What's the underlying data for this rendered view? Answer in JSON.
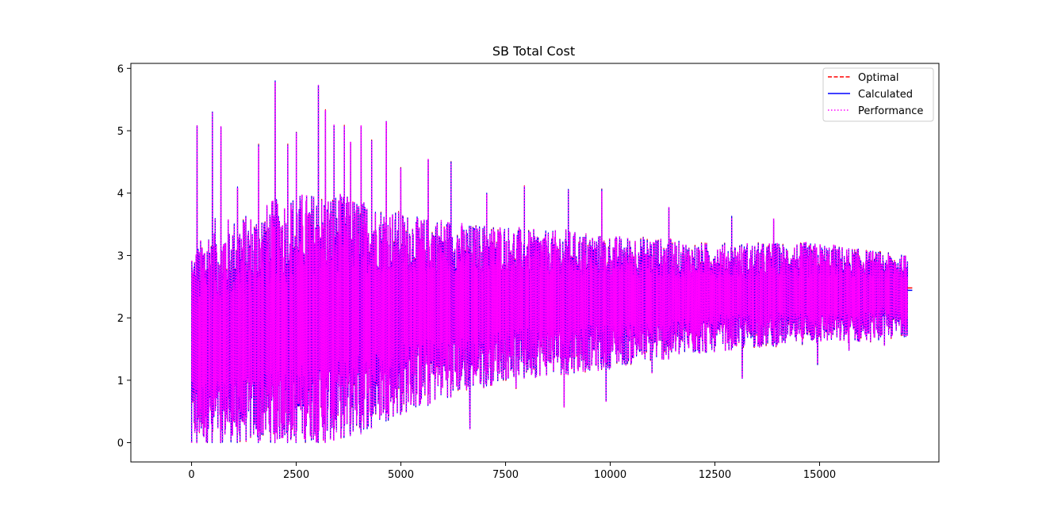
{
  "chart_data": {
    "type": "line",
    "title": "SB Total Cost",
    "xlabel": "",
    "ylabel": "",
    "xlim": [
      -1450,
      17850
    ],
    "ylim": [
      -0.31,
      6.08
    ],
    "x_ticks": [
      0,
      2500,
      5000,
      7500,
      10000,
      12500,
      15000
    ],
    "x_tick_labels": [
      "0",
      "2500",
      "5000",
      "7500",
      "10000",
      "12500",
      "15000"
    ],
    "y_ticks": [
      0,
      1,
      2,
      3,
      4,
      5,
      6
    ],
    "y_tick_labels": [
      "0",
      "1",
      "2",
      "3",
      "4",
      "5",
      "6"
    ],
    "grid": false,
    "legend_position": "top-right",
    "n_points": 17150,
    "series": [
      {
        "name": "Optimal",
        "color": "#ff0000",
        "style": "dashed"
      },
      {
        "name": "Calculated",
        "color": "#0000ff",
        "style": "solid"
      },
      {
        "name": "Performance",
        "color": "#ff00ff",
        "style": "dotted"
      }
    ],
    "envelope": {
      "x": [
        0,
        250,
        500,
        750,
        1000,
        1500,
        2000,
        2500,
        3000,
        3500,
        4000,
        4500,
        5000,
        5500,
        6000,
        6500,
        7000,
        7500,
        8000,
        9000,
        10000,
        11000,
        12000,
        13000,
        14000,
        15000,
        16000,
        17100
      ],
      "upper": [
        3.0,
        3.3,
        3.6,
        3.6,
        3.6,
        3.7,
        3.9,
        4.0,
        4.0,
        4.0,
        3.9,
        3.8,
        3.7,
        3.6,
        3.6,
        3.5,
        3.5,
        3.5,
        3.4,
        3.4,
        3.3,
        3.3,
        3.2,
        3.2,
        3.2,
        3.2,
        3.1,
        3.0
      ],
      "lower": [
        0.0,
        0.0,
        0.0,
        0.0,
        0.0,
        0.0,
        0.0,
        0.0,
        0.0,
        0.05,
        0.15,
        0.3,
        0.45,
        0.55,
        0.7,
        0.8,
        0.9,
        1.0,
        1.05,
        1.1,
        1.2,
        1.3,
        1.4,
        1.5,
        1.55,
        1.6,
        1.6,
        1.7
      ],
      "mid": [
        1.5,
        1.6,
        1.6,
        1.6,
        1.6,
        1.7,
        1.8,
        1.9,
        2.0,
        2.05,
        2.1,
        2.15,
        2.2,
        2.25,
        2.25,
        2.3,
        2.3,
        2.3,
        2.3,
        2.3,
        2.3,
        2.3,
        2.35,
        2.35,
        2.35,
        2.35,
        2.4,
        2.45
      ]
    },
    "spikes": [
      {
        "x": 130,
        "y": 5.08
      },
      {
        "x": 500,
        "y": 5.3
      },
      {
        "x": 700,
        "y": 5.05
      },
      {
        "x": 1100,
        "y": 4.1
      },
      {
        "x": 1600,
        "y": 4.77
      },
      {
        "x": 2000,
        "y": 5.8
      },
      {
        "x": 2300,
        "y": 4.77
      },
      {
        "x": 2500,
        "y": 4.97
      },
      {
        "x": 3030,
        "y": 5.73
      },
      {
        "x": 3200,
        "y": 5.32
      },
      {
        "x": 3400,
        "y": 5.07
      },
      {
        "x": 3650,
        "y": 5.07
      },
      {
        "x": 3800,
        "y": 4.8
      },
      {
        "x": 4050,
        "y": 5.07
      },
      {
        "x": 4300,
        "y": 4.84
      },
      {
        "x": 4650,
        "y": 5.15
      },
      {
        "x": 5000,
        "y": 4.4
      },
      {
        "x": 5650,
        "y": 4.53
      },
      {
        "x": 6200,
        "y": 4.5
      },
      {
        "x": 6650,
        "y": 4.5
      },
      {
        "x": 7050,
        "y": 4.0
      },
      {
        "x": 7950,
        "y": 4.1
      },
      {
        "x": 9000,
        "y": 4.06
      },
      {
        "x": 9800,
        "y": 4.06
      },
      {
        "x": 11400,
        "y": 3.77
      },
      {
        "x": 12900,
        "y": 3.63
      },
      {
        "x": 13900,
        "y": 3.57
      }
    ],
    "dips": [
      {
        "x": 6650,
        "y": 0.23
      },
      {
        "x": 7750,
        "y": 0.88
      },
      {
        "x": 8900,
        "y": 0.58
      },
      {
        "x": 9900,
        "y": 0.68
      },
      {
        "x": 11000,
        "y": 1.12
      },
      {
        "x": 13150,
        "y": 1.03
      },
      {
        "x": 14950,
        "y": 1.25
      },
      {
        "x": 15700,
        "y": 1.48
      },
      {
        "x": 16550,
        "y": 1.58
      }
    ]
  }
}
